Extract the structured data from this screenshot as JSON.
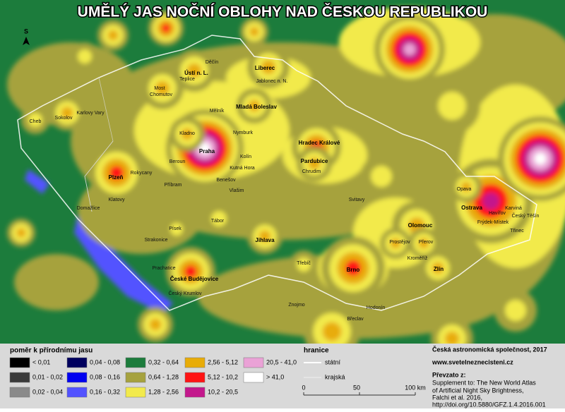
{
  "title": "UMĚLÝ JAS NOČNÍ OBLOHY NAD ČESKOU REPUBLIKOU",
  "north_arrow": "S",
  "legend": {
    "title": "poměr k přírodnímu jasu",
    "items": [
      {
        "label": "< 0,01",
        "color": "#000000"
      },
      {
        "label": "0,01 - 0,02",
        "color": "#3a3a3a"
      },
      {
        "label": "0,02 - 0,04",
        "color": "#8a8a8a"
      },
      {
        "label": "0,04 - 0,08",
        "color": "#00005e"
      },
      {
        "label": "0,08 - 0,16",
        "color": "#0000f0"
      },
      {
        "label": "0,16 - 0,32",
        "color": "#5252ff"
      },
      {
        "label": "0,32 - 0,64",
        "color": "#1c7c3c"
      },
      {
        "label": "0,64 - 1,28",
        "color": "#a6a23e"
      },
      {
        "label": "1,28 - 2,56",
        "color": "#f2ea4c"
      },
      {
        "label": "2,56 - 5,12",
        "color": "#e8ac08"
      },
      {
        "label": "5,12 - 10,2",
        "color": "#ff1414"
      },
      {
        "label": "10,2 - 20,5",
        "color": "#c3188c"
      },
      {
        "label": "20,5 - 41,0",
        "color": "#eaa2d6"
      },
      {
        "label": "> 41,0",
        "color": "#ffffff"
      }
    ]
  },
  "borders": {
    "title": "hranice",
    "items": [
      "státní",
      "krajská"
    ]
  },
  "scale_bar": {
    "labels": [
      "0",
      "50",
      "100 km"
    ]
  },
  "credits": {
    "author": "Česká astronomická společnost, 2017",
    "website": "www.svetelneznecisteni.cz",
    "source_title": "Převzato z:",
    "source_lines": [
      "Supplement to: The New World Atlas",
      "of Artificial Night Sky Brightness,",
      "Falchi et al. 2016,",
      "http://doi.org/10.5880/GFZ.1.4.2016.001"
    ]
  },
  "cities": {
    "major": [
      "Praha",
      "Plzeň",
      "Ústí n. L.",
      "Liberec",
      "Mladá Boleslav",
      "Hradec Králové",
      "Pardubice",
      "Jihlava",
      "České Budějovice",
      "Brno",
      "Olomouc",
      "Ostrava",
      "Zlín"
    ],
    "minor": [
      "Cheb",
      "Sokolov",
      "Karlovy Vary",
      "Chomutov",
      "Most",
      "Teplice",
      "Děčín",
      "Kladno",
      "Beroun",
      "Příbram",
      "Tábor",
      "Písek",
      "Strakonice",
      "Prachatice",
      "Český Krumlov",
      "Kolín",
      "Kutná Hora",
      "Chrudim",
      "Svitavy",
      "Prostějov",
      "Přerov",
      "Kroměříž",
      "Hodonín",
      "Břeclav",
      "Znojmo",
      "Třebíč",
      "Havířov",
      "Karviná",
      "Opava",
      "Frýdek-Místek",
      "Třinec",
      "Český Těšín",
      "Nymburk",
      "Mělník",
      "Jablonec n. N.",
      "Rokycany",
      "Klatovy",
      "Domažlice",
      "Vlašim",
      "Benešov"
    ]
  }
}
